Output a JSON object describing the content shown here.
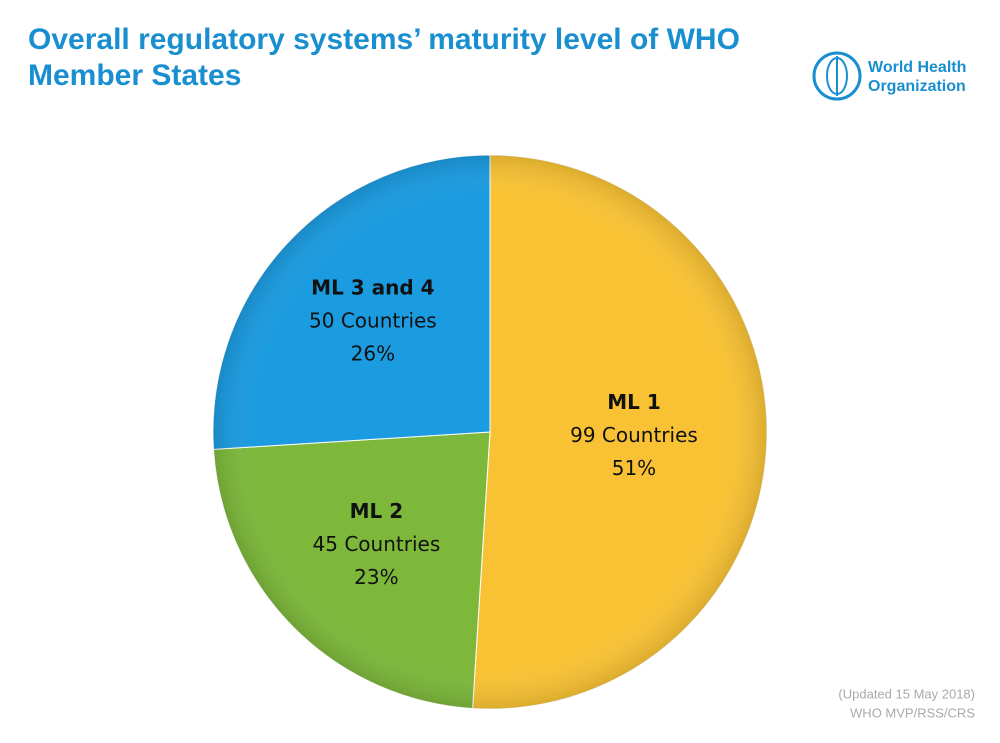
{
  "chart_data": {
    "type": "pie",
    "title": "Overall regulatory systems’ maturity level of WHO Member States",
    "logo_text": [
      "World Health",
      "Organization"
    ],
    "categories": [
      "ML 1",
      "ML 2",
      "ML 3 and 4"
    ],
    "values": [
      51,
      23,
      26
    ],
    "value_labels": [
      "51%",
      "23%",
      "26%"
    ],
    "counts": [
      99,
      45,
      50
    ],
    "count_labels": [
      "99 Countries",
      "45 Countries",
      "50 Countries"
    ],
    "colors": [
      "#f8c234",
      "#7db83b",
      "#1b9be0"
    ],
    "notes": [
      "(Updated 15 May 2018)",
      "WHO MVP/RSS/CRS"
    ]
  }
}
